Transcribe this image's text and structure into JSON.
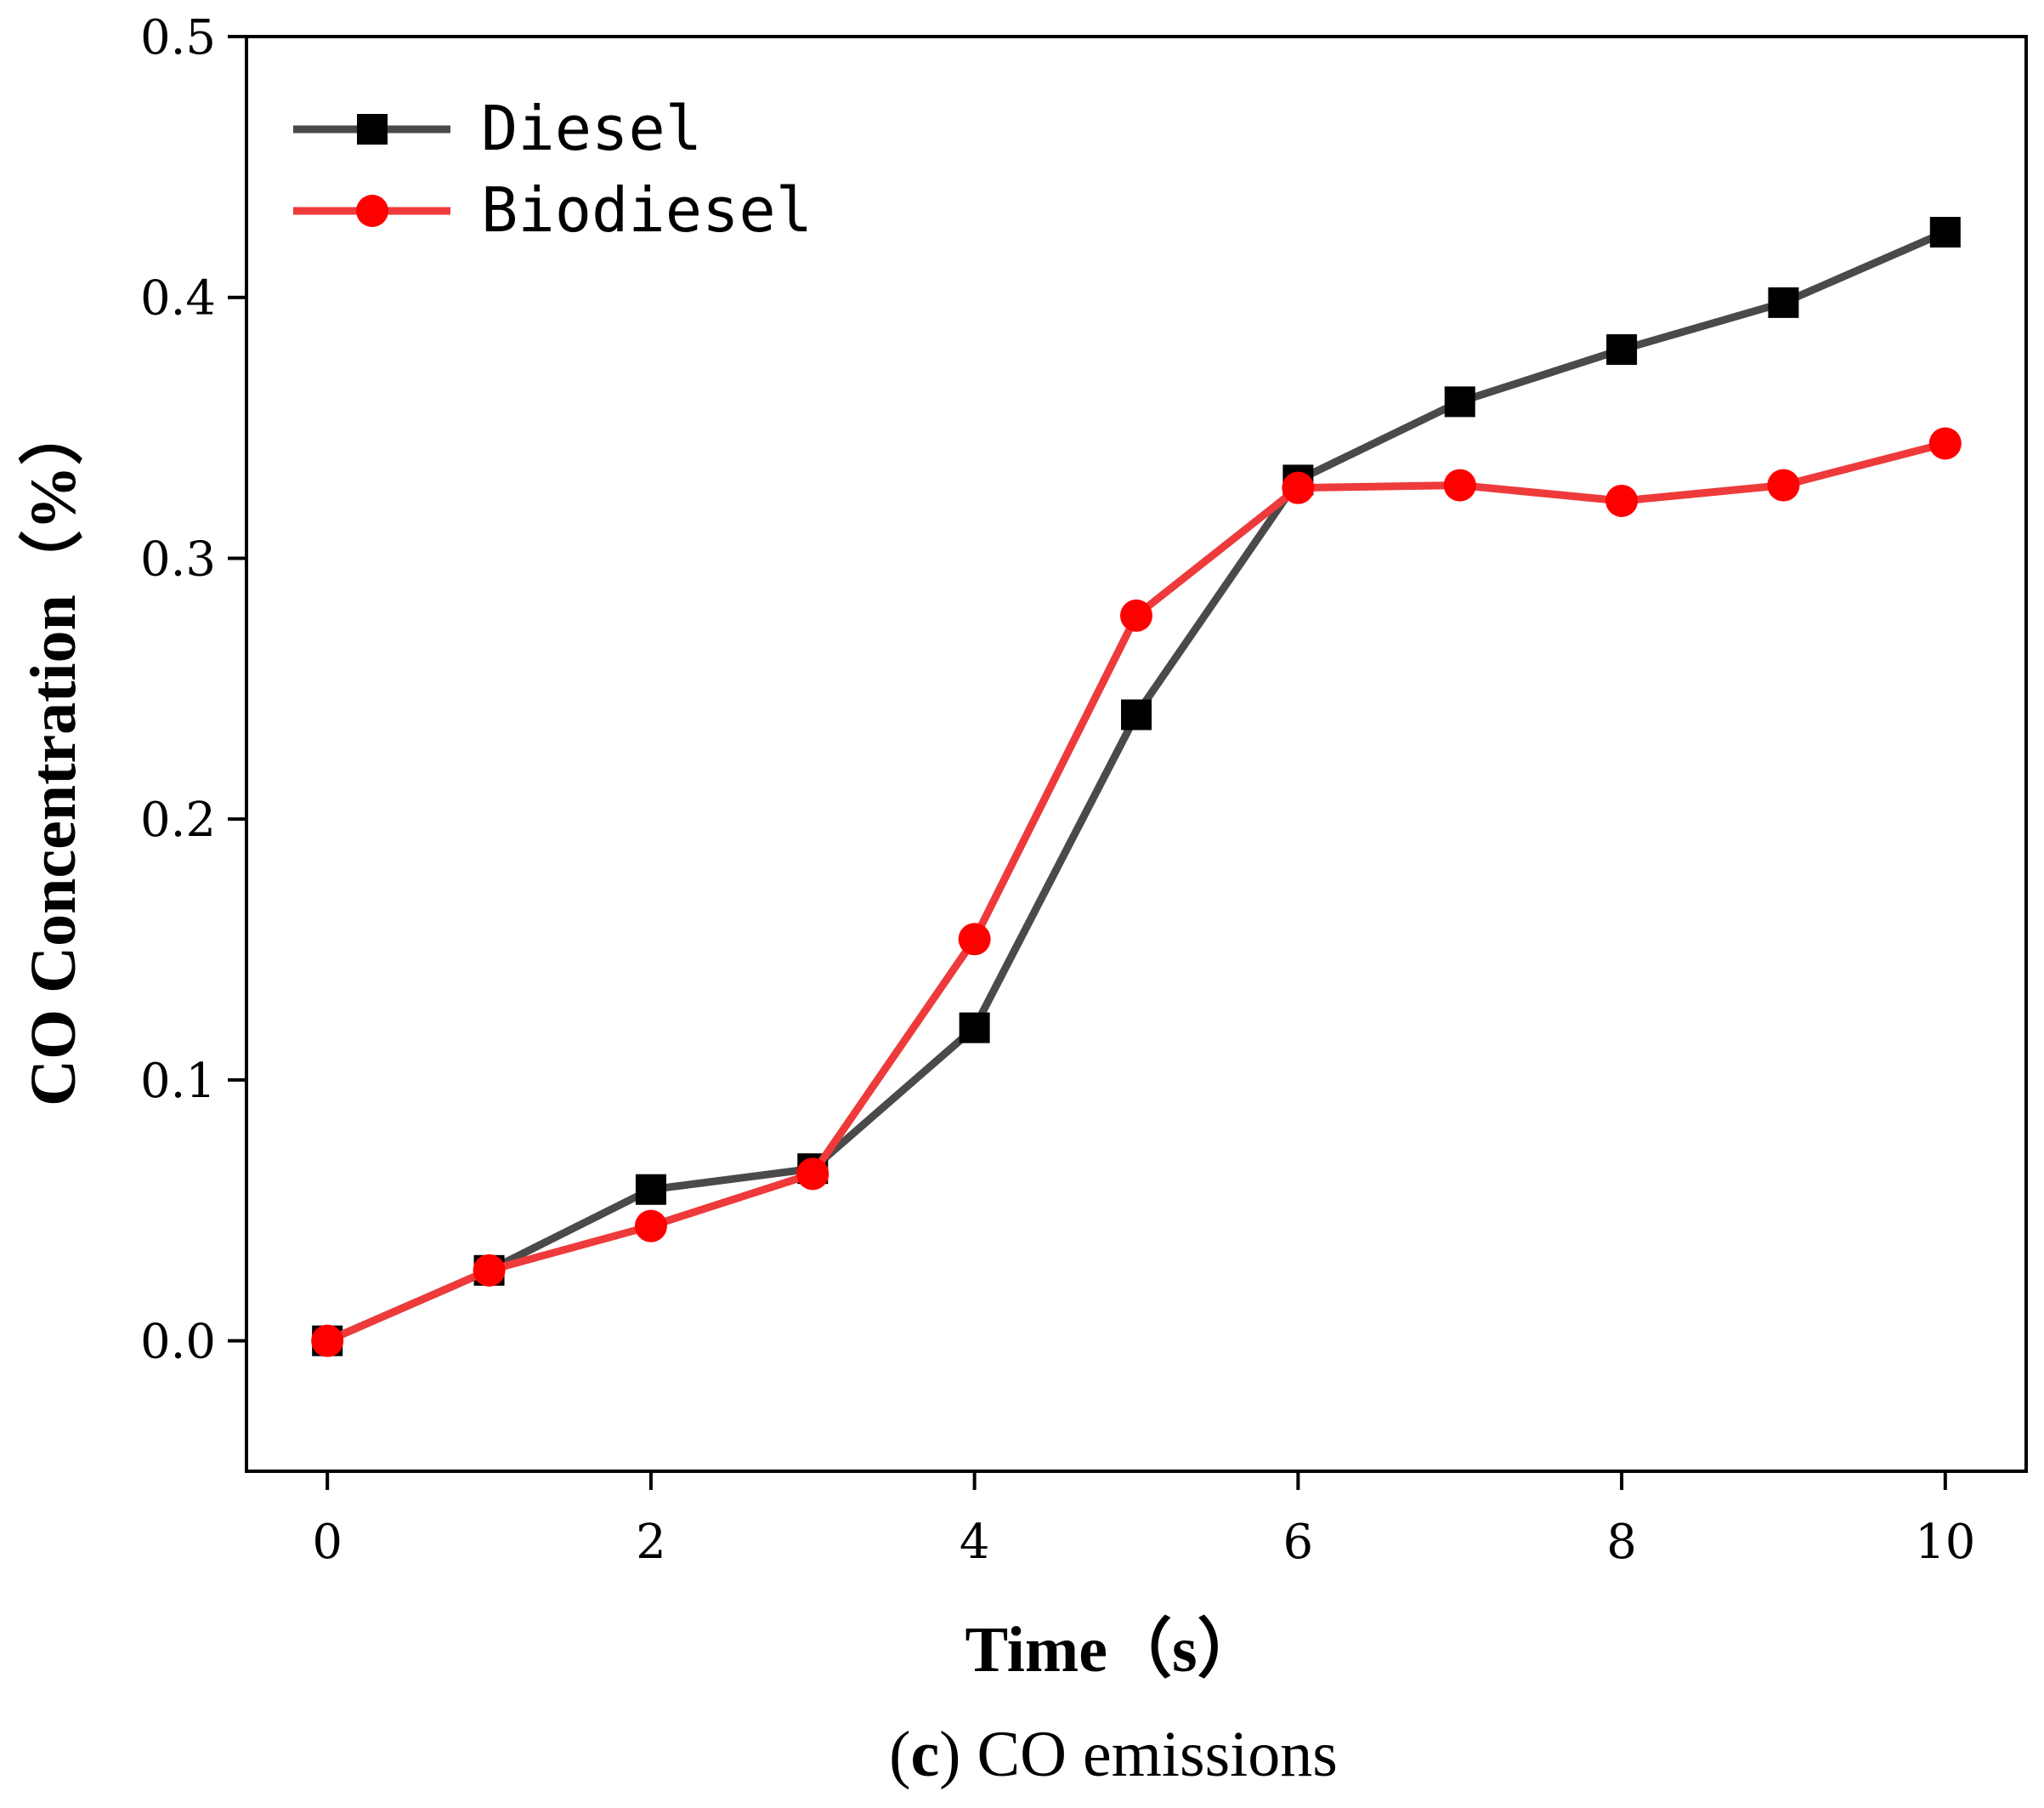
{
  "chart_data": {
    "type": "line",
    "title": "",
    "xlabel": "Time（s）",
    "ylabel": "CO Concentration（%）",
    "xlim": [
      -0.5,
      10.5
    ],
    "ylim": [
      -0.05,
      0.5
    ],
    "xticks": [
      0,
      2,
      4,
      6,
      8,
      10
    ],
    "xtick_labels": [
      "0",
      "2",
      "4",
      "6",
      "8",
      "10"
    ],
    "yticks": [
      0.0,
      0.1,
      0.2,
      0.3,
      0.4,
      0.5
    ],
    "ytick_labels": [
      "0.0",
      "0.1",
      "0.2",
      "0.3",
      "0.4",
      "0.5"
    ],
    "grid": false,
    "legend_position": "top-left",
    "x": [
      0,
      1,
      2,
      3,
      4,
      5,
      6,
      7,
      8,
      9,
      10
    ],
    "series": [
      {
        "name": "Diesel",
        "color": "#4a4a4a",
        "marker_color": "#000000",
        "marker": "square",
        "values": [
          0.0,
          0.027,
          0.058,
          0.066,
          0.12,
          0.24,
          0.33,
          0.36,
          0.38,
          0.398,
          0.425
        ]
      },
      {
        "name": "Biodiesel",
        "color": "#ee3a3a",
        "marker_color": "#ff0000",
        "marker": "circle",
        "values": [
          0.0,
          0.027,
          0.044,
          0.064,
          0.154,
          0.278,
          0.327,
          0.328,
          0.322,
          0.328,
          0.344
        ]
      }
    ]
  },
  "caption": {
    "open_paren": "(",
    "letter": "c",
    "close_paren": ")",
    "text": " CO emissions"
  }
}
